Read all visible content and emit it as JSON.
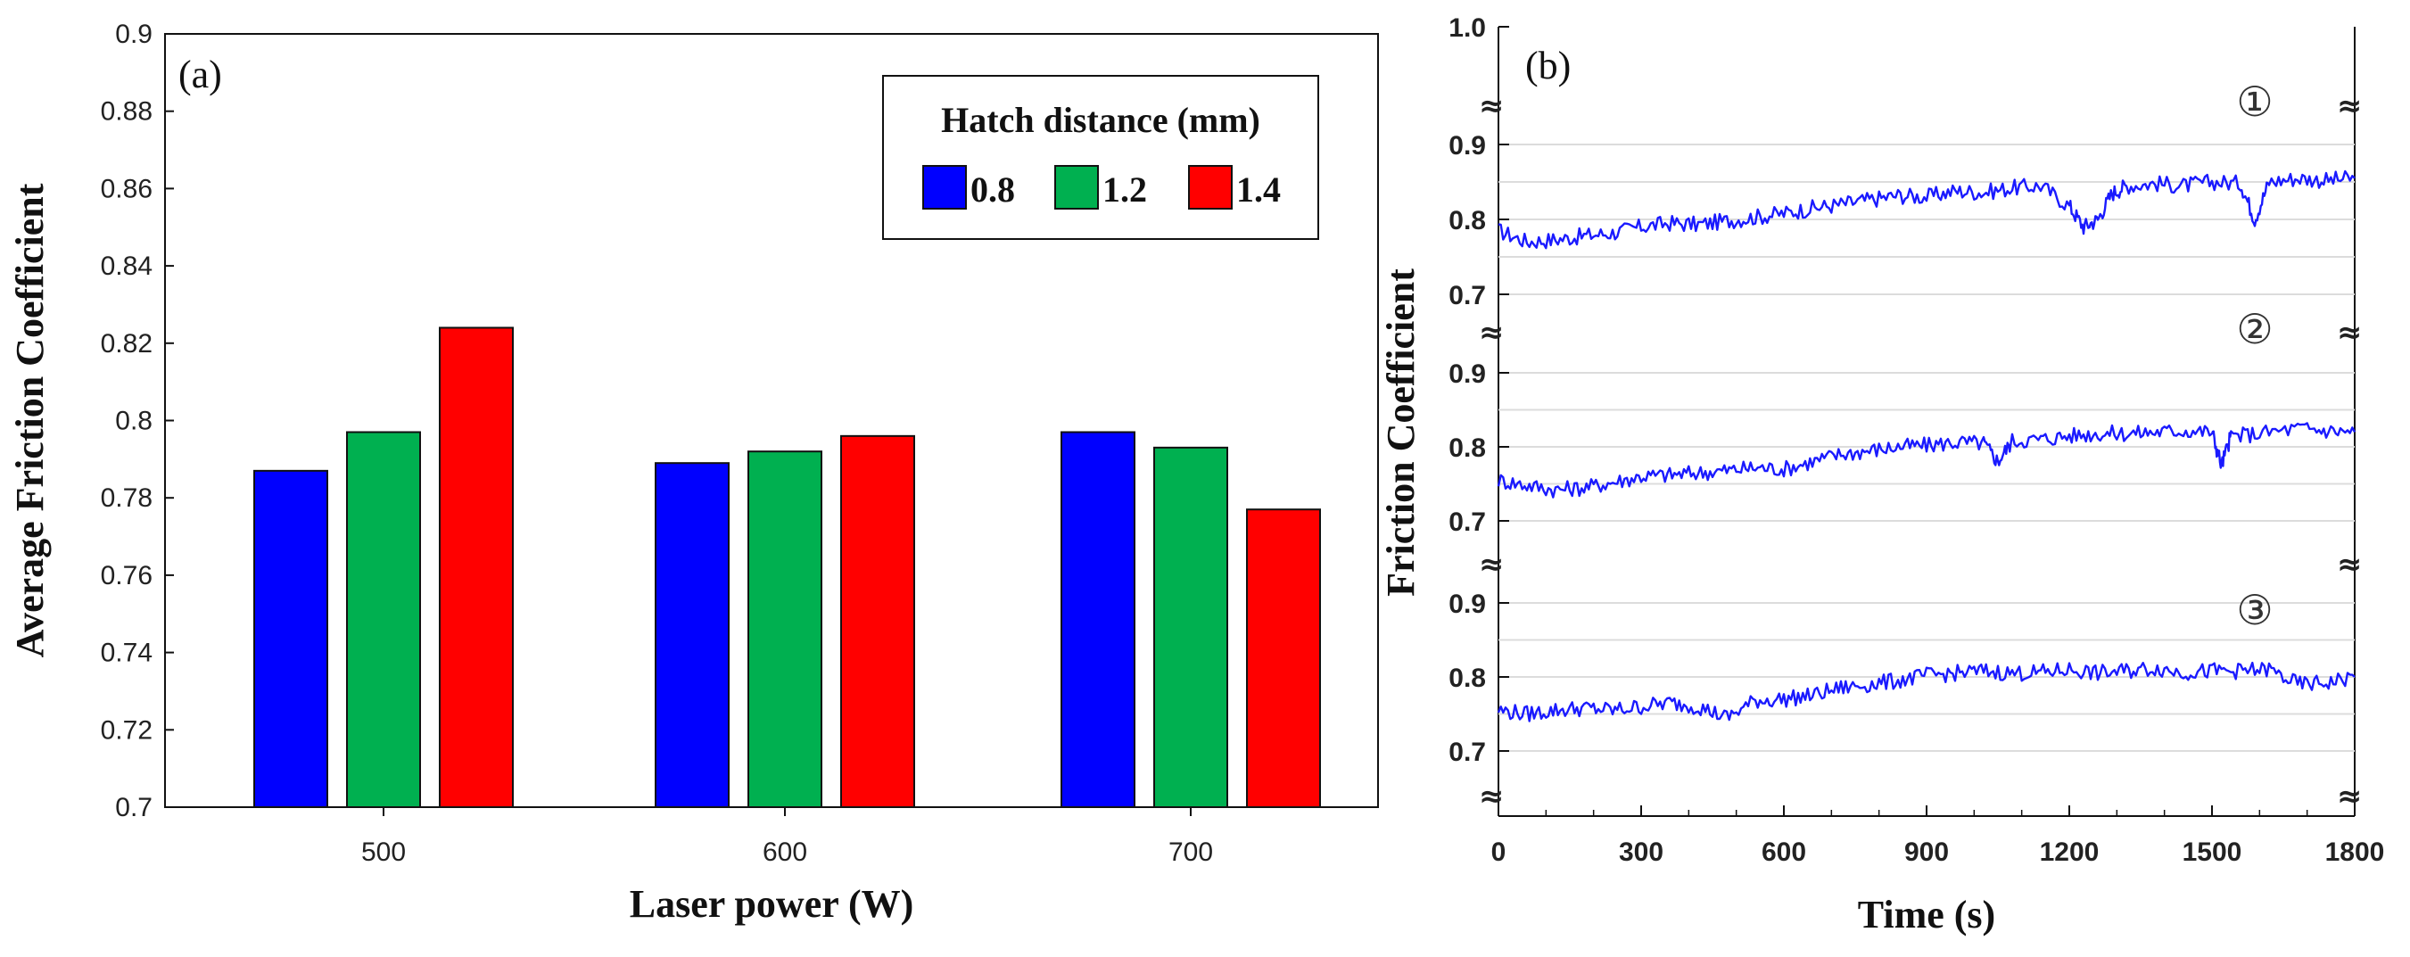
{
  "chart_data": [
    {
      "type": "bar",
      "panel_label": "(a)",
      "title": "",
      "xlabel": "Laser power (W)",
      "ylabel": "Average Friction Coefficient",
      "ylim": [
        0.7,
        0.9
      ],
      "yticks": [
        "0.7",
        "0.72",
        "0.74",
        "0.76",
        "0.78",
        "0.8",
        "0.82",
        "0.84",
        "0.86",
        "0.88",
        "0.9"
      ],
      "categories": [
        "500",
        "600",
        "700"
      ],
      "legend_title": "Hatch distance (mm)",
      "legend_position": "top-right",
      "series": [
        {
          "name": "0.8",
          "color": "#0000ff",
          "values": [
            0.787,
            0.789,
            0.797
          ]
        },
        {
          "name": "1.2",
          "color": "#00b050",
          "values": [
            0.797,
            0.792,
            0.793
          ]
        },
        {
          "name": "1.4",
          "color": "#ff0000",
          "values": [
            0.824,
            0.796,
            0.777
          ]
        }
      ]
    },
    {
      "type": "line",
      "panel_label": "(b)",
      "title": "",
      "xlabel": "Time (s)",
      "ylabel": "Friction Coefficient",
      "xlim": [
        0,
        1800
      ],
      "xticks": [
        "0",
        "300",
        "600",
        "900",
        "1200",
        "1500",
        "1800"
      ],
      "top_tick": "1.0",
      "ylim_each": [
        0.7,
        0.9
      ],
      "yticks": [
        "0.7",
        "0.8",
        "0.9"
      ],
      "line_color": "#1a1aff",
      "series": [
        {
          "name": "①",
          "x": [
            0,
            60,
            120,
            180,
            240,
            300,
            360,
            420,
            480,
            540,
            600,
            660,
            720,
            780,
            840,
            900,
            960,
            1020,
            1080,
            1140,
            1200,
            1230,
            1260,
            1290,
            1320,
            1380,
            1440,
            1500,
            1560,
            1590,
            1620,
            1680,
            1740,
            1800
          ],
          "y": [
            0.785,
            0.77,
            0.773,
            0.778,
            0.782,
            0.79,
            0.795,
            0.793,
            0.798,
            0.803,
            0.808,
            0.815,
            0.82,
            0.826,
            0.832,
            0.83,
            0.838,
            0.836,
            0.842,
            0.845,
            0.818,
            0.79,
            0.8,
            0.835,
            0.845,
            0.848,
            0.845,
            0.85,
            0.848,
            0.8,
            0.85,
            0.855,
            0.852,
            0.855
          ]
        },
        {
          "name": "②",
          "x": [
            0,
            60,
            120,
            180,
            240,
            300,
            360,
            420,
            480,
            540,
            600,
            660,
            720,
            780,
            840,
            900,
            960,
            1020,
            1050,
            1080,
            1140,
            1200,
            1260,
            1320,
            1380,
            1440,
            1500,
            1520,
            1540,
            1600,
            1680,
            1740,
            1800
          ],
          "y": [
            0.755,
            0.748,
            0.742,
            0.745,
            0.752,
            0.76,
            0.762,
            0.765,
            0.768,
            0.772,
            0.77,
            0.78,
            0.79,
            0.795,
            0.8,
            0.802,
            0.806,
            0.805,
            0.78,
            0.808,
            0.81,
            0.815,
            0.818,
            0.818,
            0.82,
            0.822,
            0.82,
            0.775,
            0.815,
            0.818,
            0.825,
            0.822,
            0.82
          ]
        },
        {
          "name": "③",
          "x": [
            0,
            60,
            120,
            180,
            240,
            300,
            360,
            420,
            480,
            540,
            600,
            660,
            720,
            780,
            840,
            900,
            960,
            1020,
            1080,
            1140,
            1200,
            1260,
            1320,
            1380,
            1440,
            1500,
            1560,
            1620,
            1680,
            1740,
            1800
          ],
          "y": [
            0.755,
            0.75,
            0.755,
            0.758,
            0.755,
            0.76,
            0.765,
            0.76,
            0.745,
            0.768,
            0.77,
            0.775,
            0.785,
            0.79,
            0.795,
            0.802,
            0.805,
            0.808,
            0.805,
            0.806,
            0.81,
            0.805,
            0.808,
            0.812,
            0.806,
            0.808,
            0.808,
            0.81,
            0.79,
            0.792,
            0.8
          ]
        }
      ]
    }
  ]
}
